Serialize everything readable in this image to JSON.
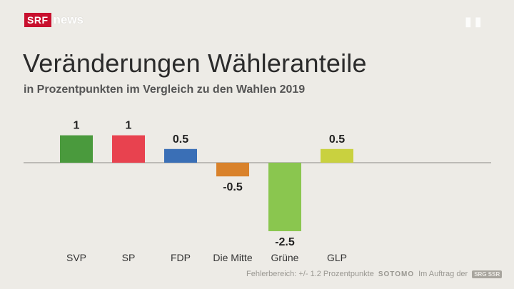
{
  "header": {
    "logo_srf": "SRF",
    "logo_news": "news"
  },
  "chart_data": {
    "type": "bar",
    "title": "Veränderungen Wähleranteile",
    "subtitle": "in Prozentpunkten im Vergleich zu den Wahlen 2019",
    "categories": [
      "SVP",
      "SP",
      "FDP",
      "Die Mitte",
      "Grüne",
      "GLP"
    ],
    "values": [
      1,
      1,
      0.5,
      -0.5,
      -2.5,
      0.5
    ],
    "value_labels": [
      "1",
      "1",
      "0.5",
      "-0.5",
      "-2.5",
      "0.5"
    ],
    "colors": [
      "#4a9a3d",
      "#e8424f",
      "#3a6fb6",
      "#d9822b",
      "#8ac64f",
      "#c9d13f"
    ],
    "ylim": [
      -2.5,
      1
    ],
    "grid": false,
    "legend": "none"
  },
  "footer": {
    "error_margin": "Fehlerbereich: +/- 1.2 Prozentpunkte",
    "brand": "SOTOMO",
    "commission": "Im Auftrag der",
    "ssr": "SRG SSR"
  }
}
